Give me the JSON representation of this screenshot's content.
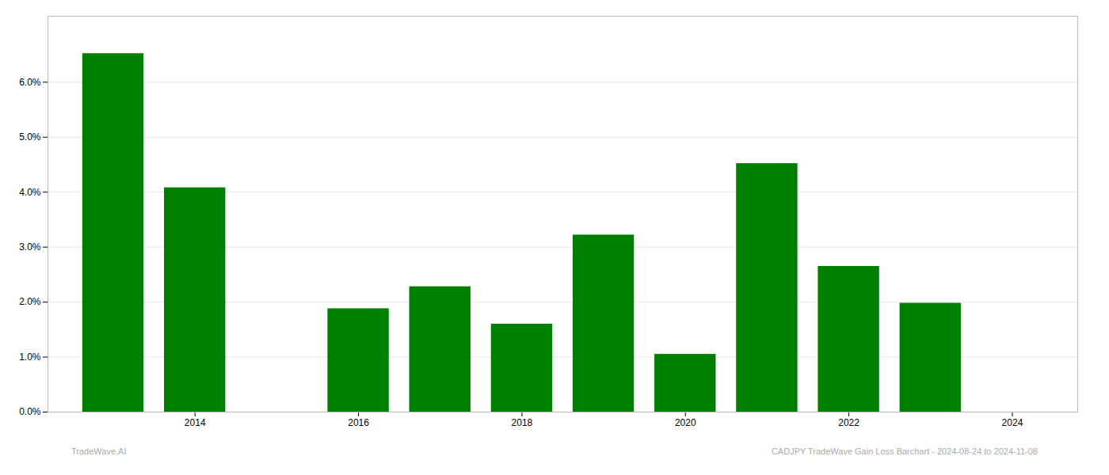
{
  "chart_data": {
    "type": "bar",
    "x": [
      2013,
      2014,
      2015,
      2016,
      2017,
      2018,
      2019,
      2020,
      2021,
      2022,
      2023
    ],
    "values": [
      6.52,
      4.08,
      0.0,
      1.88,
      2.28,
      1.6,
      3.22,
      1.05,
      4.52,
      2.65,
      1.98
    ],
    "color": "#008000",
    "xlim": [
      2012.2,
      2024.8
    ],
    "xticks": [
      2014,
      2016,
      2018,
      2020,
      2022,
      2024
    ],
    "ylim": [
      0,
      7.2
    ],
    "yticks": [
      {
        "value": 0.0,
        "label": "0.0%"
      },
      {
        "value": 1.0,
        "label": "1.0%"
      },
      {
        "value": 2.0,
        "label": "2.0%"
      },
      {
        "value": 3.0,
        "label": "3.0%"
      },
      {
        "value": 4.0,
        "label": "4.0%"
      },
      {
        "value": 5.0,
        "label": "5.0%"
      },
      {
        "value": 6.0,
        "label": "6.0%"
      }
    ],
    "grid": true,
    "annotations": [
      "TradeWave.AI",
      "CADJPY TradeWave Gain Loss Barchart - 2024-08-24 to 2024-11-08"
    ]
  }
}
